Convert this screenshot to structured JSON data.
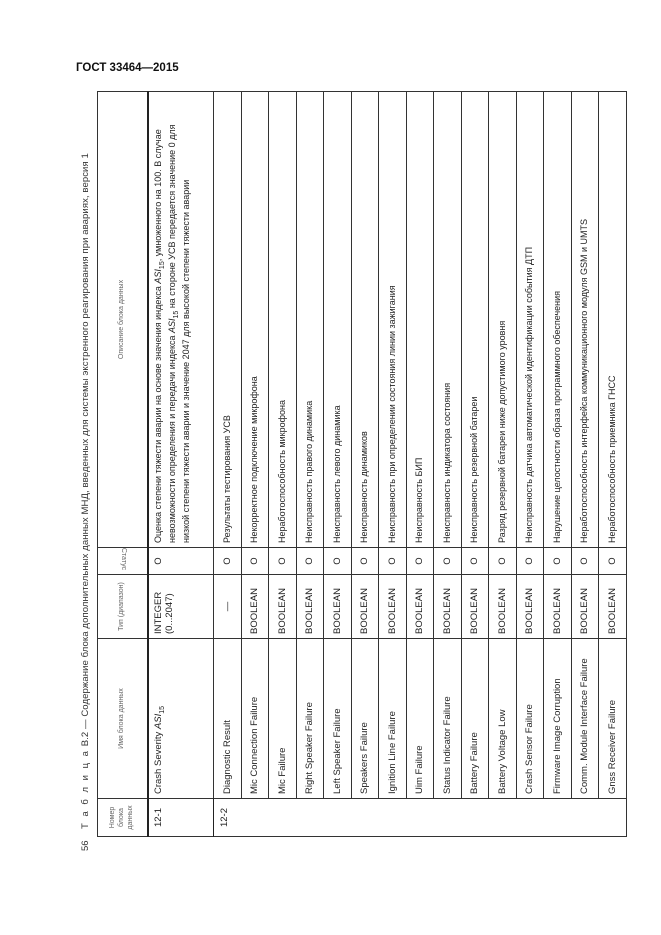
{
  "document": {
    "standard": "ГОСТ 33464—2015",
    "page_number": "56"
  },
  "table": {
    "caption_prefix": "Т а б л и ц а",
    "caption_text": "В.2 — Содержание блока дополнительных данных МНД, введенных для системы экстренного реагирования при авариях, версия 1",
    "headers": {
      "number": "Номер блока данных",
      "name": "Имя блока данных",
      "type": "Тип (диапазон)",
      "status": "Статус",
      "description": "Описание блока данных"
    },
    "row_12_1": {
      "number": "12-1",
      "name_main": "Crash Severity ",
      "name_italic": "ASI",
      "name_sub": "15",
      "type_line1": "INTEGER",
      "type_line2": "(0...2047)",
      "status": "O",
      "desc_part1": "Оценка степени тяжести аварии на основе значения индекса ",
      "desc_italic1": "ASI",
      "desc_sub1": "15",
      "desc_part2": ", умноженного на 100. В случае невозможности определения и передачи индекса ",
      "desc_italic2": "ASI",
      "desc_sub2": "15",
      "desc_part3": " на стороне УСВ передается значение 0 для низкой степени тяжести аварии и значение 2047 для высокой степени тяжести аварии"
    },
    "group_12_2_number": "12-2",
    "rows": [
      {
        "name": "Diagnostic Result",
        "type": "—",
        "status": "O",
        "description": "Результаты тестирования УСВ"
      },
      {
        "name": "Mic Connection Failure",
        "type": "BOOLEAN",
        "status": "O",
        "description": "Некорректное подключение микрофона"
      },
      {
        "name": "Mic Failure",
        "type": "BOOLEAN",
        "status": "O",
        "description": "Неработоспособность микрофона"
      },
      {
        "name": "Right Speaker Failure",
        "type": "BOOLEAN",
        "status": "O",
        "description": "Неисправность правого динамика"
      },
      {
        "name": "Left Speaker Failure",
        "type": "BOOLEAN",
        "status": "O",
        "description": "Неисправность левого динамика"
      },
      {
        "name": "Speakers Failure",
        "type": "BOOLEAN",
        "status": "O",
        "description": "Неисправность динамиков"
      },
      {
        "name": "Ignition Line Failure",
        "type": "BOOLEAN",
        "status": "O",
        "description": "Неисправность при определении состояния линии зажигания"
      },
      {
        "name": "Uim Failure",
        "type": "BOOLEAN",
        "status": "O",
        "description": "Неисправность БИП"
      },
      {
        "name": "Status Indicator Failure",
        "type": "BOOLEAN",
        "status": "O",
        "description": "Неисправность индикатора состояния"
      },
      {
        "name": "Battery Failure",
        "type": "BOOLEAN",
        "status": "O",
        "description": "Неисправность резервной батареи"
      },
      {
        "name": "Battery Voltage Low",
        "type": "BOOLEAN",
        "status": "O",
        "description": "Разряд резервной батареи ниже допустимого уровня"
      },
      {
        "name": "Crash Sensor Failure",
        "type": "BOOLEAN",
        "status": "O",
        "description": "Неисправность датчика автоматической идентификации события ДТП"
      },
      {
        "name": "Firmware Image Corruption",
        "type": "BOOLEAN",
        "status": "O",
        "description": "Нарушение целостности образа программного обеспечения"
      },
      {
        "name": "Comm. Module Interface Failure",
        "type": "BOOLEAN",
        "status": "O",
        "description": "Неработоспособность интерфейса коммуникационного модуля GSM и UMTS"
      },
      {
        "name": "Gnss Receiver Failure",
        "type": "BOOLEAN",
        "status": "O",
        "description": "Неработоспособность приемника ГНСС"
      }
    ]
  }
}
